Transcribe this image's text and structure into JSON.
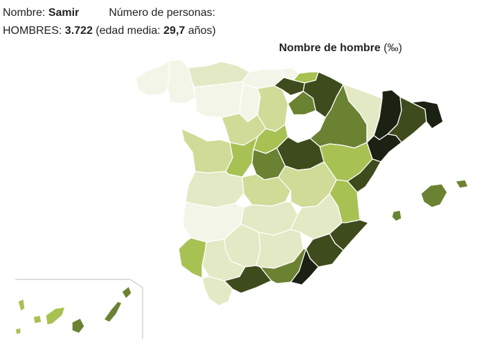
{
  "header": {
    "name_label": "Nombre:",
    "name_value": "Samir",
    "people_label": "Número de personas:",
    "men_label": "HOMBRES:",
    "men_count": "3.722",
    "age_prefix": "(edad media:",
    "age_value": "29,7",
    "age_suffix": "años)"
  },
  "legend": {
    "title": "Nombre de hombre",
    "unit": "(‰)"
  },
  "colors": {
    "level_0": "#ffffff",
    "level_1": "#f3f5e8",
    "level_2": "#e3e9c4",
    "level_3": "#cfdb97",
    "level_4": "#a8c153",
    "level_5": "#6b8233",
    "level_6": "#3e4b1c",
    "level_7": "#1c2213",
    "border": "#ffffff",
    "inset_line": "#bdbdbd"
  }
}
